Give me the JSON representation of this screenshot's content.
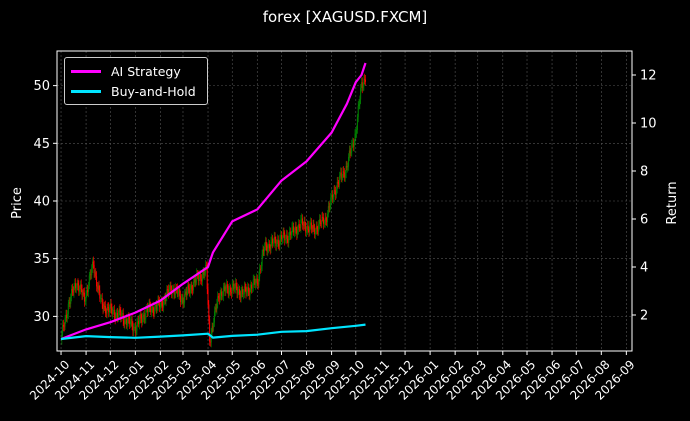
{
  "chart_data": {
    "type": "line",
    "title": "forex [XAGUSD.FXCM]",
    "ylabel_left": "Price",
    "ylabel_right": "Return",
    "ylim_left": [
      27,
      53
    ],
    "ylim_right": [
      0.5,
      13
    ],
    "left_ticks": [
      30,
      35,
      40,
      45,
      50
    ],
    "right_ticks": [
      2,
      4,
      6,
      8,
      10,
      12
    ],
    "x_tick_labels": [
      "2024-10",
      "2024-11",
      "2024-12",
      "2025-01",
      "2025-02",
      "2025-03",
      "2025-04",
      "2025-05",
      "2025-06",
      "2025-07",
      "2025-08",
      "2025-09",
      "2025-10",
      "2025-11",
      "2025-12",
      "2026-01",
      "2026-02",
      "2026-03",
      "2026-04",
      "2026-05",
      "2026-06",
      "2026-07",
      "2026-08",
      "2026-09"
    ],
    "grid": true,
    "legend_placement": "top-left",
    "candle_colors": {
      "up": "#008000",
      "down": "#ff0000"
    },
    "price_candles": {
      "approx_close": [
        [
          "2024-10-01",
          28.0
        ],
        [
          "2024-10-10",
          31.0
        ],
        [
          "2024-10-20",
          33.0
        ],
        [
          "2024-10-30",
          31.5
        ],
        [
          "2024-11-10",
          34.5
        ],
        [
          "2024-11-20",
          31.0
        ],
        [
          "2024-12-01",
          30.5
        ],
        [
          "2024-12-15",
          30.0
        ],
        [
          "2025-01-01",
          29.0
        ],
        [
          "2025-01-15",
          30.5
        ],
        [
          "2025-02-01",
          31.0
        ],
        [
          "2025-02-15",
          32.5
        ],
        [
          "2025-03-01",
          31.5
        ],
        [
          "2025-03-15",
          33.0
        ],
        [
          "2025-03-30",
          34.0
        ],
        [
          "2025-04-03",
          28.0
        ],
        [
          "2025-04-15",
          32.0
        ],
        [
          "2025-05-01",
          32.5
        ],
        [
          "2025-05-15",
          32.0
        ],
        [
          "2025-06-01",
          33.0
        ],
        [
          "2025-06-10",
          36.0
        ],
        [
          "2025-06-25",
          36.5
        ],
        [
          "2025-07-10",
          37.0
        ],
        [
          "2025-07-25",
          38.0
        ],
        [
          "2025-08-10",
          37.5
        ],
        [
          "2025-08-25",
          38.5
        ],
        [
          "2025-09-05",
          41.0
        ],
        [
          "2025-09-20",
          43.0
        ],
        [
          "2025-10-01",
          46.0
        ],
        [
          "2025-10-08",
          50.0
        ],
        [
          "2025-10-14",
          51.0
        ]
      ]
    },
    "series": [
      {
        "name": "AI Strategy",
        "color": "#ff00ff",
        "axis": "right",
        "points": [
          [
            "2024-10-01",
            1.0
          ],
          [
            "2024-11-01",
            1.4
          ],
          [
            "2024-12-01",
            1.7
          ],
          [
            "2025-01-01",
            2.1
          ],
          [
            "2025-02-01",
            2.6
          ],
          [
            "2025-03-01",
            3.3
          ],
          [
            "2025-04-01",
            4.0
          ],
          [
            "2025-04-07",
            4.6
          ],
          [
            "2025-05-01",
            5.9
          ],
          [
            "2025-06-01",
            6.4
          ],
          [
            "2025-07-01",
            7.6
          ],
          [
            "2025-08-01",
            8.4
          ],
          [
            "2025-09-01",
            9.6
          ],
          [
            "2025-09-20",
            10.8
          ],
          [
            "2025-10-01",
            11.7
          ],
          [
            "2025-10-08",
            12.0
          ],
          [
            "2025-10-13",
            12.5
          ]
        ]
      },
      {
        "name": "Buy-and-Hold",
        "color": "#00e5ff",
        "axis": "right",
        "points": [
          [
            "2024-10-01",
            1.0
          ],
          [
            "2024-11-01",
            1.12
          ],
          [
            "2024-12-01",
            1.08
          ],
          [
            "2025-01-01",
            1.05
          ],
          [
            "2025-02-01",
            1.1
          ],
          [
            "2025-03-01",
            1.15
          ],
          [
            "2025-04-01",
            1.22
          ],
          [
            "2025-04-07",
            1.06
          ],
          [
            "2025-05-01",
            1.13
          ],
          [
            "2025-06-01",
            1.18
          ],
          [
            "2025-07-01",
            1.3
          ],
          [
            "2025-08-01",
            1.33
          ],
          [
            "2025-09-01",
            1.45
          ],
          [
            "2025-10-01",
            1.55
          ],
          [
            "2025-10-13",
            1.6
          ]
        ]
      }
    ]
  }
}
